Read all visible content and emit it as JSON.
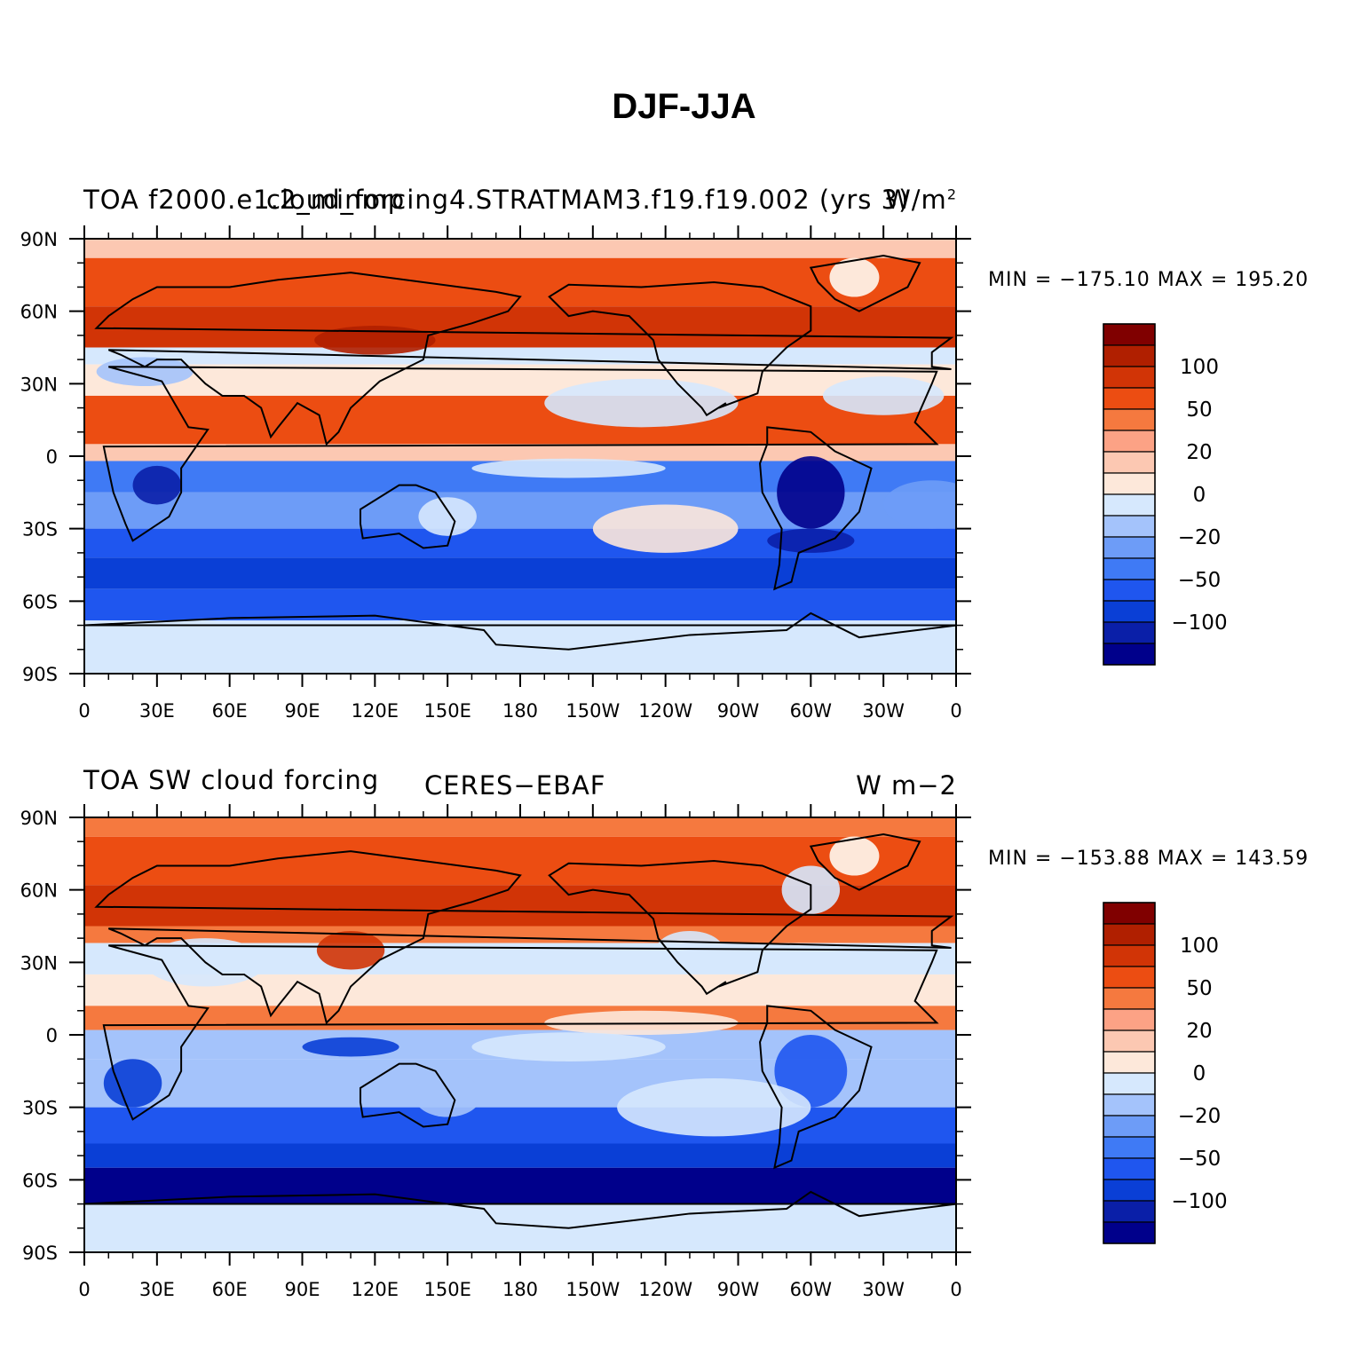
{
  "figure_title": "DJF-JJA",
  "colors": {
    "palette": [
      "#00008b",
      "#0a1fa8",
      "#0a3fd6",
      "#1f56ef",
      "#3f7af5",
      "#6d9cf7",
      "#a4c3fb",
      "#d6e8fd",
      "#fde8da",
      "#fcc8b2",
      "#fca285",
      "#f5793f",
      "#ec4d12",
      "#d13406",
      "#b01f00",
      "#800000"
    ],
    "ocean_base": "#ffffff",
    "coast": "#000000"
  },
  "colorbar": {
    "levels": [
      -150,
      -125,
      -100,
      -75,
      -50,
      -35,
      -20,
      -10,
      0,
      10,
      20,
      35,
      50,
      75,
      100,
      125
    ],
    "labels": [
      "-100",
      "-50",
      "-20",
      "0",
      "20",
      "50",
      "100"
    ]
  },
  "axes": {
    "lat_labels": [
      "90N",
      "60N",
      "30N",
      "0",
      "30S",
      "60S",
      "90S"
    ],
    "lon_labels": [
      "0",
      "30E",
      "60E",
      "90E",
      "120E",
      "150E",
      "180",
      "150W",
      "120W",
      "90W",
      "60W",
      "30W",
      "0"
    ]
  },
  "panels": [
    {
      "left_title": "TOA f2000.e1.2_minmp",
      "center_title": "cloud_forcing4.STRATMAM3.f19.f19.002 (yrs 3)",
      "right_title": "W/m",
      "right_title_sup": "2",
      "stats": "MIN = -175.10 MAX = 195.20"
    },
    {
      "left_title": "TOA SW cloud forcing",
      "center_title": "CERES-EBAF",
      "right_title": "W m-2",
      "right_title_sup": "",
      "stats": "MIN = -153.88 MAX = 143.59"
    }
  ]
}
